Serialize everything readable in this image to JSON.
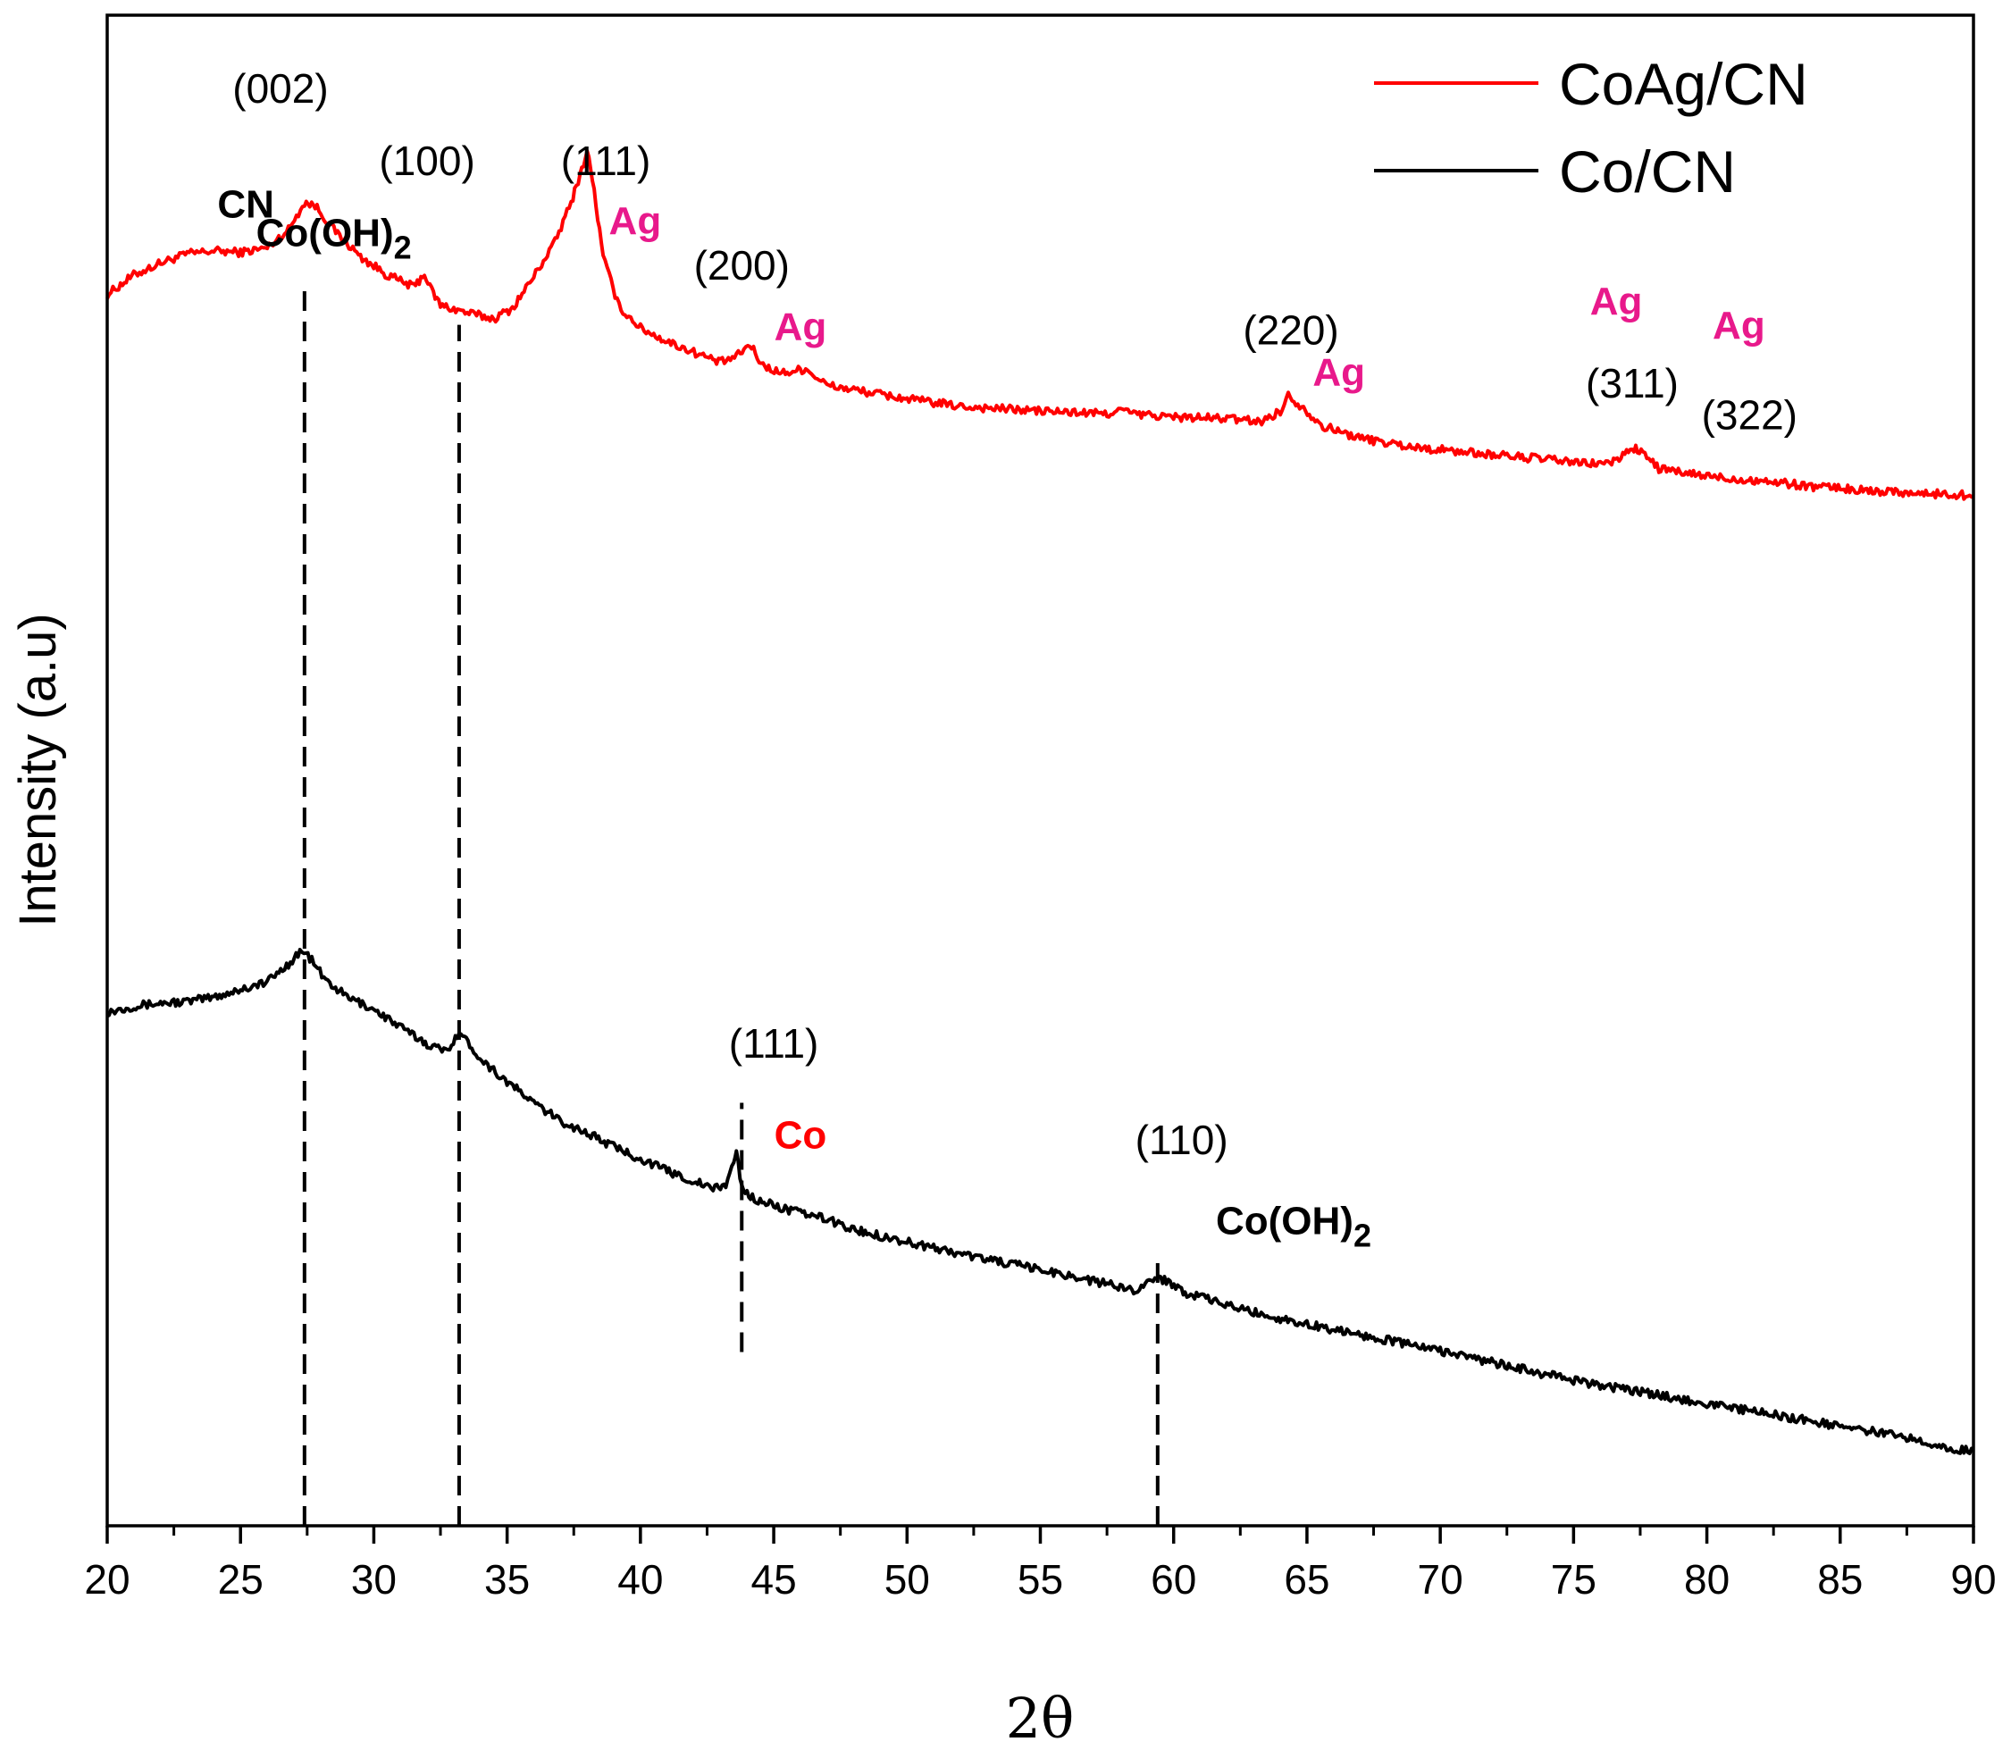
{
  "chart_data": {
    "type": "line",
    "xlabel": "2θ",
    "ylabel": "Intensity (a.u)",
    "xlim": [
      20,
      90
    ],
    "xticks": [
      "20",
      "25",
      "30",
      "35",
      "40",
      "45",
      "50",
      "55",
      "60",
      "65",
      "70",
      "75",
      "80",
      "85",
      "90"
    ],
    "ylim": [
      0,
      100
    ],
    "legend_position": "top-right",
    "colors": {
      "coag": "#ff0000",
      "co": "#000000",
      "ag_label": "#e8198b",
      "co_label": "#ff0000"
    },
    "series": [
      {
        "name": "CoAg/CN",
        "color": "#ff0000",
        "x": [
          20,
          21,
          22,
          23,
          24,
          25,
          26,
          26.8,
          27.4,
          27.8,
          28.5,
          29.5,
          30.5,
          31.5,
          31.9,
          32.1,
          32.5,
          33.5,
          34.5,
          35.2,
          36,
          36.8,
          37.4,
          37.8,
          38.0,
          38.2,
          38.6,
          39.2,
          40,
          41,
          42,
          43,
          43.6,
          44.1,
          44.6,
          45.3,
          46.2,
          47,
          48,
          50,
          52,
          55,
          57.5,
          58,
          58.5,
          60,
          62,
          63.3,
          64,
          64.3,
          64.8,
          65.6,
          67,
          69,
          72,
          74,
          75.5,
          76.5,
          77.2,
          77.6,
          78.2,
          79,
          80,
          81,
          82,
          83,
          84,
          85,
          86,
          87,
          88,
          89,
          90
        ],
        "y": [
          81.5,
          82.8,
          83.6,
          84.2,
          84.4,
          84.3,
          84.6,
          85.8,
          87.6,
          87.4,
          85.8,
          84.0,
          82.8,
          82.0,
          82.9,
          82.0,
          80.8,
          80.3,
          79.9,
          80.6,
          82.7,
          85.0,
          87.6,
          89.8,
          91.0,
          89.2,
          84.0,
          80.7,
          79.3,
          78.4,
          77.7,
          77.0,
          77.4,
          78.2,
          76.8,
          76.3,
          76.6,
          75.5,
          75.2,
          74.6,
          74.1,
          73.8,
          73.6,
          73.9,
          73.6,
          73.4,
          73.3,
          73.1,
          73.8,
          74.8,
          74.1,
          72.8,
          72.0,
          71.4,
          70.9,
          70.6,
          70.3,
          70.4,
          71.4,
          71.0,
          70.0,
          69.7,
          69.5,
          69.3,
          69.2,
          69.0,
          68.8,
          68.7,
          68.5,
          68.5,
          68.3,
          68.3,
          68.2
        ]
      },
      {
        "name": "Co/CN",
        "color": "#000000",
        "x": [
          20,
          21,
          22,
          23,
          24,
          25,
          26,
          26.8,
          27.3,
          27.6,
          28.2,
          29,
          30,
          31,
          32,
          32.7,
          33.2,
          33.6,
          34.2,
          35,
          36,
          37,
          38,
          39,
          40,
          41,
          42,
          42.8,
          43.2,
          43.5,
          43.6,
          43.8,
          44.2,
          45,
          46,
          47,
          48,
          50,
          52,
          54,
          56,
          57.5,
          58.5,
          59.3,
          59.8,
          60.5,
          62,
          64,
          66,
          68,
          70,
          72,
          74,
          76,
          78,
          80,
          82,
          84,
          86,
          88,
          89,
          90
        ],
        "y": [
          34.0,
          34.4,
          34.6,
          34.7,
          35.0,
          35.5,
          36.0,
          37.2,
          38.1,
          37.6,
          36.1,
          35.0,
          34.2,
          33.0,
          31.9,
          31.4,
          32.7,
          31.8,
          30.6,
          29.4,
          28.0,
          26.8,
          26.0,
          25.1,
          24.3,
          23.5,
          22.8,
          22.3,
          22.6,
          24.0,
          24.8,
          22.4,
          21.7,
          21.2,
          20.7,
          20.3,
          19.6,
          18.8,
          18.0,
          17.3,
          16.6,
          16.0,
          15.6,
          16.4,
          16.2,
          15.4,
          14.6,
          13.7,
          13.0,
          12.3,
          11.6,
          10.8,
          10.0,
          9.3,
          8.7,
          8.1,
          7.5,
          6.9,
          6.3,
          5.7,
          5.2,
          4.9
        ]
      }
    ],
    "reference_lines": [
      {
        "x": 27.4,
        "y_from": 0,
        "y_to": 82
      },
      {
        "x": 33.2,
        "y_from": 0,
        "y_to": 79.5
      },
      {
        "x": 43.8,
        "y_from": 11.5,
        "y_to": 28
      },
      {
        "x": 59.4,
        "y_from": 0,
        "y_to": 18
      }
    ],
    "annotations": [
      {
        "text": "(002)",
        "x": 26.5,
        "y": 94.2,
        "kind": "hkl"
      },
      {
        "text": "CN",
        "x": 25.2,
        "y": 86.6,
        "kind": "phase",
        "color": "#000000"
      },
      {
        "text": "(100)",
        "x": 32.0,
        "y": 89.4,
        "kind": "hkl"
      },
      {
        "text": "Co(OH)",
        "sub": "2",
        "x": 28.5,
        "y": 84.7,
        "kind": "phase",
        "color": "#000000"
      },
      {
        "text": "(111)",
        "x": 38.7,
        "y": 89.4,
        "kind": "hkl"
      },
      {
        "text": "Ag",
        "x": 39.8,
        "y": 85.5,
        "kind": "phase",
        "color": "#e8198b"
      },
      {
        "text": "(200)",
        "x": 43.8,
        "y": 82.5,
        "kind": "hkl"
      },
      {
        "text": "Ag",
        "x": 46.0,
        "y": 78.5,
        "kind": "phase",
        "color": "#e8198b"
      },
      {
        "text": "(220)",
        "x": 64.4,
        "y": 78.2,
        "kind": "hkl"
      },
      {
        "text": "Ag",
        "x": 66.2,
        "y": 75.5,
        "kind": "phase",
        "color": "#e8198b"
      },
      {
        "text": "Ag",
        "x": 76.6,
        "y": 80.2,
        "kind": "phase",
        "color": "#e8198b"
      },
      {
        "text": "(311)",
        "x": 77.2,
        "y": 74.7,
        "kind": "hkl"
      },
      {
        "text": "Ag",
        "x": 81.2,
        "y": 78.6,
        "kind": "phase",
        "color": "#e8198b"
      },
      {
        "text": "(322)",
        "x": 81.6,
        "y": 72.6,
        "kind": "hkl"
      },
      {
        "text": "(111)",
        "x": 45.0,
        "y": 31.0,
        "kind": "hkl"
      },
      {
        "text": "Co",
        "x": 46.0,
        "y": 25.0,
        "kind": "phase",
        "color": "#ff0000"
      },
      {
        "text": "(110)",
        "x": 60.3,
        "y": 24.6,
        "kind": "hkl"
      },
      {
        "text": "Co(OH)",
        "sub": "2",
        "x": 64.5,
        "y": 19.3,
        "kind": "phase",
        "color": "#000000"
      }
    ]
  }
}
